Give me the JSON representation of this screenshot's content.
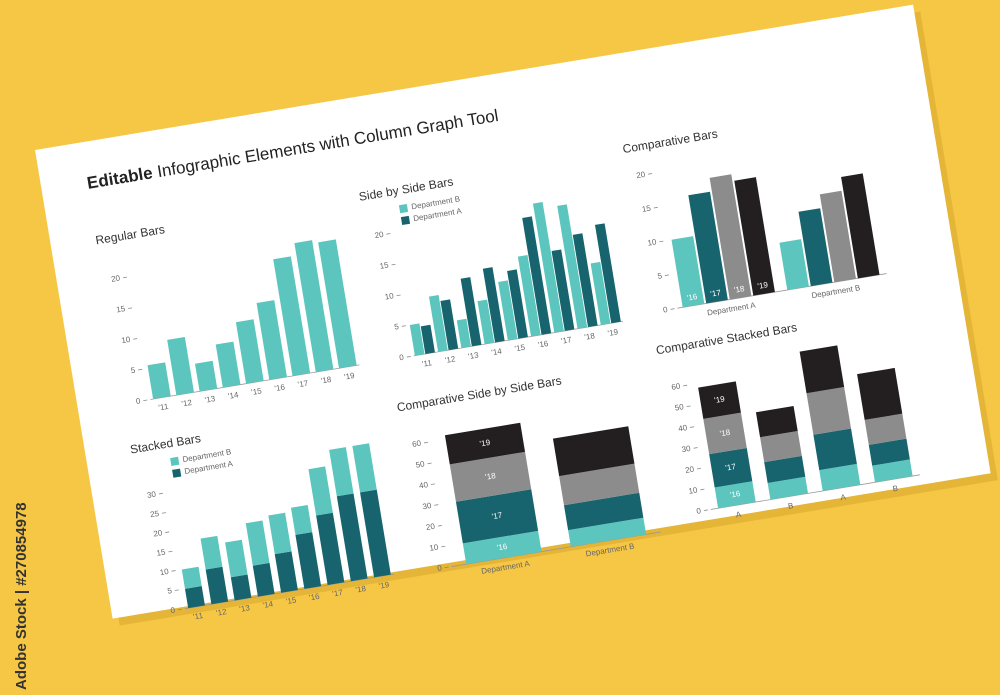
{
  "header": {
    "bold": "Editable",
    "title": "Infographic Elements with Column Graph Tool"
  },
  "watermark": "Adobe Stock | #270854978",
  "chart_data": [
    {
      "type": "bar",
      "title": "Regular Bars",
      "categories": [
        "'11",
        "'12",
        "'13",
        "'14",
        "'15",
        "'16",
        "'17",
        "'18",
        "'19"
      ],
      "values": [
        5.5,
        9,
        4.5,
        7,
        10,
        12.5,
        19,
        21,
        20.5
      ],
      "color": "#5cc6be",
      "ylim": [
        0,
        22
      ],
      "yticks": [
        0,
        5,
        10,
        15,
        20
      ]
    },
    {
      "type": "grouped_bar",
      "title": "Side by Side Bars",
      "legend": "top-left",
      "categories": [
        "'11",
        "'12",
        "'13",
        "'14",
        "'15",
        "'16",
        "'17",
        "'18",
        "'19"
      ],
      "series": [
        {
          "name": "Department B",
          "color": "#5cc6be",
          "values": [
            5,
            9,
            4.5,
            7,
            9.5,
            13,
            21,
            20,
            10
          ]
        },
        {
          "name": "Department A",
          "color": "#17646e",
          "values": [
            4.5,
            8,
            11,
            12,
            11,
            19,
            13,
            15,
            16
          ]
        }
      ],
      "ylim": [
        0,
        22
      ],
      "yticks": [
        0,
        5,
        10,
        15,
        20
      ]
    },
    {
      "type": "grouped_bar",
      "title": "Comparative Bars",
      "categories": [
        "Department A",
        "Department B"
      ],
      "series": [
        {
          "name": "'16",
          "color": "#5cc6be",
          "values": [
            10,
            7
          ]
        },
        {
          "name": "'17",
          "color": "#17646e",
          "values": [
            16,
            11
          ]
        },
        {
          "name": "'18",
          "color": "#8c8c8c",
          "values": [
            18,
            13
          ]
        },
        {
          "name": "'19",
          "color": "#231f20",
          "values": [
            17,
            15
          ]
        }
      ],
      "ylim": [
        0,
        20
      ],
      "yticks": [
        0,
        5,
        10,
        15,
        20
      ]
    },
    {
      "type": "stacked_bar",
      "title": "Stacked Bars",
      "legend": "top-left",
      "categories": [
        "'11",
        "'12",
        "'13",
        "'14",
        "'15",
        "'16",
        "'17",
        "'18",
        "'19"
      ],
      "series": [
        {
          "name": "Department A",
          "color": "#17646e",
          "values": [
            5,
            9,
            6,
            8,
            10,
            14,
            18,
            22,
            22
          ]
        },
        {
          "name": "Department B",
          "color": "#5cc6be",
          "values": [
            5,
            8,
            9,
            11,
            10,
            7,
            12,
            12,
            12
          ]
        }
      ],
      "ylim": [
        0,
        35
      ],
      "yticks": [
        0,
        5,
        10,
        15,
        20,
        25,
        30
      ]
    },
    {
      "type": "stacked_bar",
      "title": "Comparative Side by Side Bars",
      "categories": [
        "Department A",
        "Department B"
      ],
      "series": [
        {
          "name": "'16",
          "color": "#5cc6be",
          "values": [
            10,
            8
          ]
        },
        {
          "name": "'17",
          "color": "#17646e",
          "values": [
            20,
            12
          ]
        },
        {
          "name": "'18",
          "color": "#8c8c8c",
          "values": [
            18,
            14
          ]
        },
        {
          "name": "'19",
          "color": "#231f20",
          "values": [
            14,
            18
          ]
        }
      ],
      "ylim": [
        0,
        65
      ],
      "yticks": [
        0,
        10,
        20,
        30,
        40,
        50,
        60
      ]
    },
    {
      "type": "stacked_bar",
      "title": "Comparative Stacked Bars",
      "categories": [
        "A",
        "B",
        "A",
        "B"
      ],
      "series": [
        {
          "name": "'16",
          "color": "#5cc6be",
          "values": [
            10,
            8,
            10,
            8
          ]
        },
        {
          "name": "'17",
          "color": "#17646e",
          "values": [
            16,
            10,
            17,
            10
          ]
        },
        {
          "name": "'18",
          "color": "#8c8c8c",
          "values": [
            17,
            12,
            20,
            12
          ]
        },
        {
          "name": "'19",
          "color": "#231f20",
          "values": [
            15,
            12,
            20,
            22
          ]
        }
      ],
      "ylim": [
        0,
        65
      ],
      "yticks": [
        0,
        10,
        20,
        30,
        40,
        50,
        60
      ]
    }
  ]
}
